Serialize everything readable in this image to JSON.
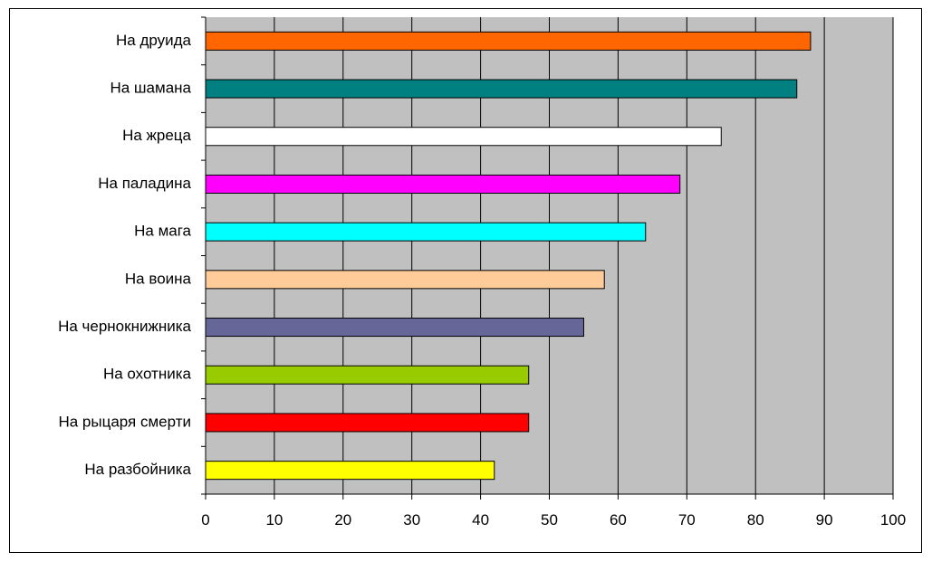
{
  "chart_data": {
    "type": "bar",
    "orientation": "horizontal",
    "categories": [
      "На друида",
      "На шамана",
      "На жреца",
      "На паладина",
      "На мага",
      "На воина",
      "На чернокнижника",
      "На охотника",
      "На рыцаря смерти",
      "На разбойника"
    ],
    "values": [
      88,
      86,
      75,
      69,
      64,
      58,
      55,
      47,
      47,
      42
    ],
    "colors": [
      "#FF6600",
      "#008080",
      "#FFFFFF",
      "#FF00FF",
      "#00FFFF",
      "#FFCC99",
      "#666699",
      "#99CC00",
      "#FF0000",
      "#FFFF00"
    ],
    "xlim": [
      0,
      100
    ],
    "xticks": [
      0,
      10,
      20,
      30,
      40,
      50,
      60,
      70,
      80,
      90,
      100
    ],
    "grid": true,
    "plot_background": "#C0C0C0",
    "legend": "none",
    "title": "",
    "xlabel": "",
    "ylabel": ""
  }
}
